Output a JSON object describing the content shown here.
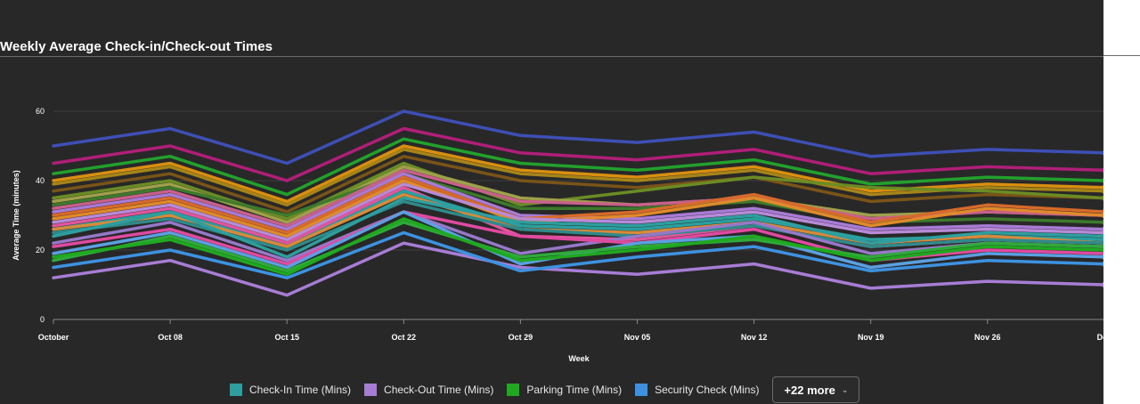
{
  "chart_data": {
    "type": "line",
    "title": "Weekly Average Check-in/Check-out Times",
    "xlabel": "Week",
    "ylabel": "Average Time (minutes)",
    "categories": [
      "October",
      "Oct 08",
      "Oct 15",
      "Oct 22",
      "Oct 29",
      "Nov 05",
      "Nov 12",
      "Nov 19",
      "Nov 26",
      "Dec"
    ],
    "yticks": [
      "0",
      "20",
      "40",
      "60"
    ],
    "ylim": [
      0,
      60
    ],
    "grid": true,
    "legend_position": "bottom",
    "more_label": "+22 more",
    "series": [
      {
        "name": "Check-In Time (Mins)",
        "color": "#2e9e9e",
        "values": [
          24,
          31,
          18,
          35,
          28,
          27,
          30,
          22,
          25,
          24
        ]
      },
      {
        "name": "Check-Out Time (Mins)",
        "color": "#a77dd4",
        "values": [
          12,
          17,
          7,
          22,
          15,
          13,
          16,
          9,
          11,
          10
        ]
      },
      {
        "name": "Parking Time (Mins)",
        "color": "#1fa91f",
        "values": [
          18,
          23,
          13,
          29,
          17,
          20,
          24,
          17,
          21,
          20
        ]
      },
      {
        "name": "Security Check (Mins)",
        "color": "#3d92e0",
        "values": [
          15,
          20,
          12,
          25,
          14,
          18,
          21,
          14,
          17,
          16
        ]
      },
      {
        "color": "#3e4fb5",
        "values": [
          50,
          55,
          45,
          60,
          53,
          51,
          54,
          47,
          49,
          48
        ]
      },
      {
        "color": "#b01e78",
        "values": [
          45,
          50,
          40,
          55,
          48,
          46,
          49,
          42,
          44,
          43
        ]
      },
      {
        "color": "#22a12c",
        "values": [
          42,
          47,
          36,
          52,
          45,
          43,
          46,
          39,
          41,
          40
        ]
      },
      {
        "color": "#d98f0f",
        "values": [
          40,
          45,
          34,
          50,
          43,
          41,
          44,
          37,
          39,
          38
        ]
      },
      {
        "color": "#a68418",
        "values": [
          39,
          44,
          33,
          49,
          42,
          40,
          43,
          36,
          38,
          37
        ]
      },
      {
        "color": "#7a5418",
        "values": [
          37,
          42,
          31,
          47,
          40,
          38,
          41,
          34,
          36,
          35
        ]
      },
      {
        "color": "#6a8c24",
        "values": [
          35,
          40,
          29,
          45,
          33,
          37,
          41,
          38,
          37,
          35
        ]
      },
      {
        "color": "#9fa04a",
        "values": [
          34,
          39,
          28,
          44,
          35,
          33,
          35,
          30,
          31,
          30
        ]
      },
      {
        "color": "#3d7a2c",
        "values": [
          33,
          38,
          30,
          42,
          32,
          32,
          34,
          28,
          29,
          28
        ]
      },
      {
        "color": "#c8608a",
        "values": [
          32,
          37,
          27,
          43,
          34,
          33,
          35,
          29,
          31,
          30
        ]
      },
      {
        "color": "#a87ad6",
        "values": [
          31,
          36,
          26,
          42,
          30,
          29,
          32,
          26,
          27,
          26
        ]
      },
      {
        "color": "#d76a2a",
        "values": [
          30,
          35,
          25,
          41,
          29,
          31,
          36,
          28,
          33,
          31
        ]
      },
      {
        "color": "#e08a2a",
        "values": [
          29,
          34,
          24,
          40,
          28,
          30,
          35,
          27,
          32,
          30
        ]
      },
      {
        "color": "#b88ad8",
        "values": [
          28,
          33,
          23,
          39,
          29,
          28,
          31,
          25,
          26,
          25
        ]
      },
      {
        "color": "#e0569c",
        "values": [
          27,
          32,
          22,
          38,
          24,
          23,
          27,
          21,
          23,
          22
        ]
      },
      {
        "color": "#2aa0a0",
        "values": [
          26,
          31,
          21,
          37,
          27,
          26,
          29,
          23,
          24,
          23
        ]
      },
      {
        "color": "#d78a3a",
        "values": [
          26,
          30,
          21,
          36,
          26,
          25,
          28,
          22,
          24,
          22
        ]
      },
      {
        "color": "#2f8a8a",
        "values": [
          25,
          29,
          20,
          34,
          26,
          24,
          27,
          21,
          23,
          22
        ]
      },
      {
        "color": "#9678c8",
        "values": [
          22,
          28,
          17,
          31,
          19,
          24,
          28,
          19,
          22,
          21
        ]
      },
      {
        "color": "#e04aa0",
        "values": [
          21,
          26,
          16,
          31,
          24,
          22,
          26,
          17,
          20,
          19
        ]
      },
      {
        "color": "#5aa0e0",
        "values": [
          19,
          25,
          15,
          31,
          16,
          22,
          24,
          15,
          19,
          18
        ]
      },
      {
        "color": "#2faa3a",
        "values": [
          17,
          24,
          14,
          28,
          18,
          21,
          23,
          18,
          22,
          21
        ]
      }
    ]
  }
}
